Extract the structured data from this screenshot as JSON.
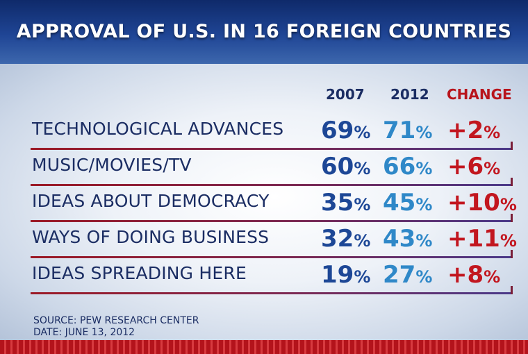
{
  "title": "APPROVAL OF U.S. IN 16 FOREIGN COUNTRIES",
  "columns": {
    "y2007": "2007",
    "y2012": "2012",
    "change": "CHANGE"
  },
  "rows": [
    {
      "label": "TECHNOLOGICAL ADVANCES",
      "v2007": "69",
      "v2012": "71",
      "change": "+2"
    },
    {
      "label": "MUSIC/MOVIES/TV",
      "v2007": "60",
      "v2012": "66",
      "change": "+6"
    },
    {
      "label": "IDEAS ABOUT DEMOCRACY",
      "v2007": "35",
      "v2012": "45",
      "change": "+10"
    },
    {
      "label": "WAYS OF DOING BUSINESS",
      "v2007": "32",
      "v2012": "43",
      "change": "+11"
    },
    {
      "label": "IDEAS SPREADING HERE",
      "v2007": "19",
      "v2012": "27",
      "change": "+8"
    }
  ],
  "percent_sign": "%",
  "source": {
    "line1": "SOURCE: PEW RESEARCH CENTER",
    "line2": "DATE: JUNE 13, 2012"
  },
  "colors": {
    "header": "#1f4595",
    "label_text": "#1b2d63",
    "value_2007": "#1d4796",
    "value_2012": "#2f88c8",
    "change": "#c2161f"
  },
  "chart_data": {
    "type": "table",
    "title": "APPROVAL OF U.S. IN 16 FOREIGN COUNTRIES",
    "columns": [
      "2007",
      "2012",
      "CHANGE"
    ],
    "categories": [
      "TECHNOLOGICAL ADVANCES",
      "MUSIC/MOVIES/TV",
      "IDEAS ABOUT DEMOCRACY",
      "WAYS OF DOING BUSINESS",
      "IDEAS SPREADING HERE"
    ],
    "series": [
      {
        "name": "2007",
        "values": [
          69,
          60,
          35,
          32,
          19
        ]
      },
      {
        "name": "2012",
        "values": [
          71,
          66,
          45,
          43,
          27
        ]
      },
      {
        "name": "CHANGE",
        "values": [
          2,
          6,
          10,
          11,
          8
        ]
      }
    ],
    "unit": "%"
  }
}
